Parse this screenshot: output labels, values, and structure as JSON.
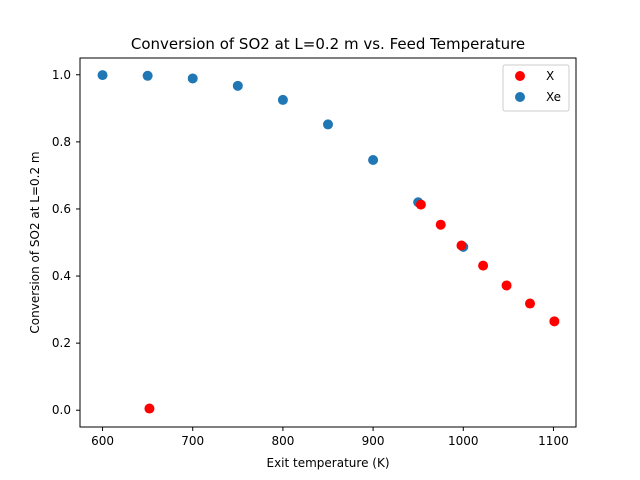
{
  "chart_data": {
    "type": "scatter",
    "title": "Conversion of SO2 at L=0.2 m vs. Feed Temperature",
    "xlabel": "Exit temperature (K)",
    "ylabel": "Conversion of SO2 at L=0.2 m",
    "xlim": [
      575,
      1125
    ],
    "ylim": [
      -0.05,
      1.05
    ],
    "xticks": [
      600,
      700,
      800,
      900,
      1000,
      1100
    ],
    "yticks": [
      0.0,
      0.2,
      0.4,
      0.6,
      0.8,
      1.0
    ],
    "grid": false,
    "legend_position": "top-right",
    "series": [
      {
        "name": "X",
        "color": "#ff0000",
        "points": [
          {
            "x": 652,
            "y": 0.005
          },
          {
            "x": 953,
            "y": 0.613
          },
          {
            "x": 975,
            "y": 0.553
          },
          {
            "x": 998,
            "y": 0.491
          },
          {
            "x": 1022,
            "y": 0.431
          },
          {
            "x": 1048,
            "y": 0.372
          },
          {
            "x": 1074,
            "y": 0.318
          },
          {
            "x": 1101,
            "y": 0.265
          }
        ]
      },
      {
        "name": "Xe",
        "color": "#1f77b4",
        "points": [
          {
            "x": 600,
            "y": 0.999
          },
          {
            "x": 650,
            "y": 0.997
          },
          {
            "x": 700,
            "y": 0.989
          },
          {
            "x": 750,
            "y": 0.967
          },
          {
            "x": 800,
            "y": 0.925
          },
          {
            "x": 850,
            "y": 0.852
          },
          {
            "x": 900,
            "y": 0.746
          },
          {
            "x": 950,
            "y": 0.62
          },
          {
            "x": 1000,
            "y": 0.487
          }
        ]
      }
    ]
  }
}
